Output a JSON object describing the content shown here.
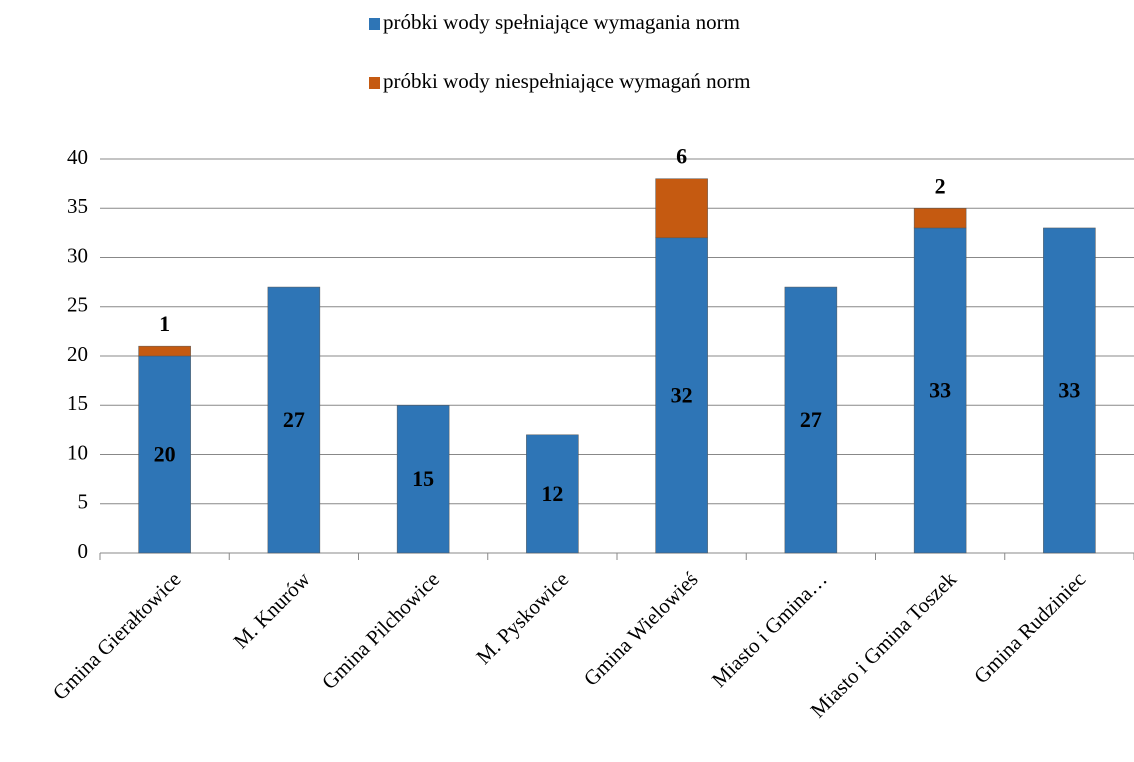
{
  "chart_data": {
    "type": "stacked_bar",
    "categories": [
      "Gmina Gierałtowice",
      "M. Knurów",
      "Gmina Pilchowice",
      "M. Pyskowice",
      "Gmina Wielowieś",
      "Miasto i Gmina…",
      "Miasto i Gmina Toszek",
      "Gmina Rudziniec"
    ],
    "series": [
      {
        "name": "próbki wody spełniające wymagania norm",
        "color": "#2e75b6",
        "values": [
          20,
          27,
          15,
          12,
          32,
          27,
          33,
          33
        ]
      },
      {
        "name": "próbki wody niespełniające wymagań norm",
        "color": "#c55a11",
        "values": [
          1,
          0,
          0,
          0,
          6,
          0,
          2,
          0
        ]
      }
    ],
    "ylim": [
      0,
      40
    ],
    "yticks": [
      0,
      5,
      10,
      15,
      20,
      25,
      30,
      35,
      40
    ],
    "grid": true,
    "legend": "top"
  }
}
